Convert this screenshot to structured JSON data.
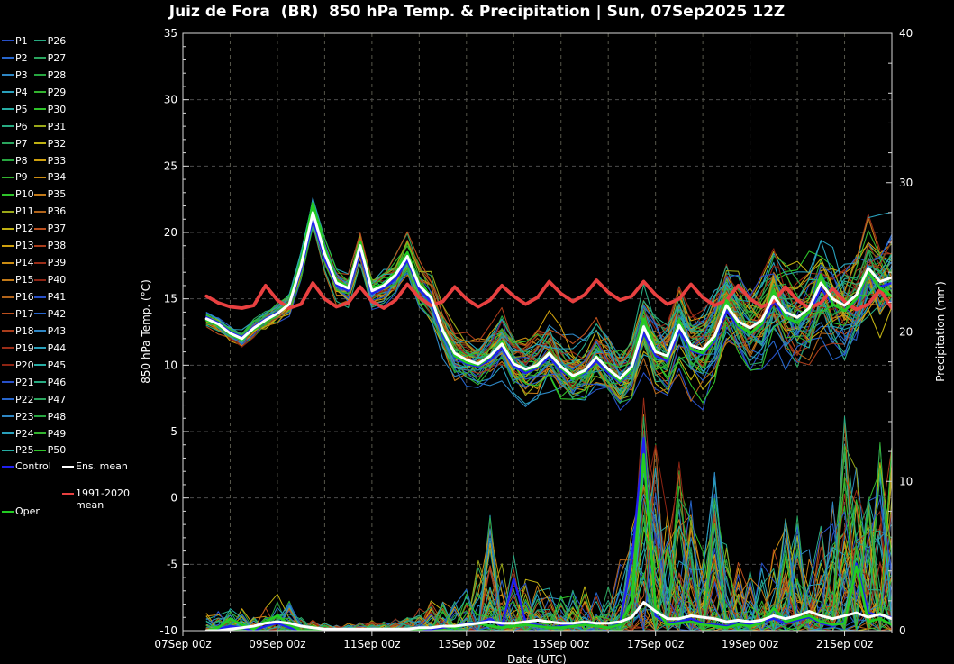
{
  "title": "Juiz de Fora  (BR)  850 hPa Temp. & Precipitation | Sun, 07Sep2025 12Z",
  "legend": {
    "members": [
      "P1",
      "P2",
      "P3",
      "P4",
      "P5",
      "P6",
      "P7",
      "P8",
      "P9",
      "P10",
      "P11",
      "P12",
      "P13",
      "P14",
      "P15",
      "P16",
      "P17",
      "P18",
      "P19",
      "P20",
      "P21",
      "P22",
      "P23",
      "P24",
      "P25",
      "P26",
      "P27",
      "P28",
      "P29",
      "P30",
      "P31",
      "P32",
      "P33",
      "P34",
      "P35",
      "P36",
      "P37",
      "P38",
      "P39",
      "P40",
      "P41",
      "P42",
      "P43",
      "P44",
      "P45",
      "P46",
      "P47",
      "P48",
      "P49",
      "P50"
    ],
    "palette": [
      "#2850c8",
      "#2766cd",
      "#2e86c3",
      "#29a0bb",
      "#26ada4",
      "#28ab82",
      "#2aa55e",
      "#27a640",
      "#33b32f",
      "#2fc32a",
      "#9aa818",
      "#c0b112",
      "#cfa00e",
      "#cb8c12",
      "#c37a18",
      "#b2641a",
      "#bb4f1d",
      "#aa3d1b",
      "#9b2d18",
      "#8d2413"
    ],
    "control": {
      "label": "Control",
      "color": "#2020f0"
    },
    "ens_mean": {
      "label": "Ens. mean",
      "color": "#ffffff"
    },
    "climatology": {
      "label": "1991-2020 mean",
      "line1": "1991-2020",
      "line2": "mean",
      "color": "#e84040"
    },
    "oper": {
      "label": "Oper",
      "color": "#22cc22"
    }
  },
  "chart_data": {
    "type": "line",
    "title": "Juiz de Fora  (BR)  850 hPa Temp. & Precipitation | Sun, 07Sep2025 12Z",
    "x_axis": {
      "label": "Date (UTC)",
      "tick_labels": [
        "07Sep 00z",
        "09Sep 00z",
        "11Sep 00z",
        "13Sep 00z",
        "15Sep 00z",
        "17Sep 00z",
        "19Sep 00z",
        "21Sep 00z"
      ],
      "tick_days": [
        0,
        2,
        4,
        6,
        8,
        10,
        12,
        14
      ],
      "range_days": [
        0,
        15
      ],
      "start": "07Sep2025 00z"
    },
    "y_left": {
      "label": "850 hPa Temp. (°C)",
      "range": [
        -10,
        35
      ],
      "ticks": [
        -10,
        -5,
        0,
        5,
        10,
        15,
        20,
        25,
        30,
        35
      ]
    },
    "y_right": {
      "label": "Precipitation (mm)",
      "range": [
        0,
        40
      ],
      "ticks": [
        0,
        10,
        20,
        30,
        40
      ]
    },
    "grid": true,
    "legend_position": "left",
    "n_members": 50,
    "forecast_start_day": 0.5,
    "time_step_days": 0.25,
    "series": {
      "climatology_temp": [
        15.2,
        14.7,
        14.4,
        14.3,
        14.5,
        16.0,
        14.9,
        14.3,
        14.6,
        16.2,
        15.0,
        14.4,
        14.7,
        15.9,
        14.8,
        14.3,
        14.9,
        16.1,
        15.1,
        14.5,
        14.8,
        15.9,
        15.0,
        14.4,
        14.9,
        16.0,
        15.2,
        14.6,
        15.1,
        16.3,
        15.4,
        14.8,
        15.3,
        16.4,
        15.5,
        14.9,
        15.2,
        16.3,
        15.3,
        14.6,
        15.0,
        16.1,
        15.1,
        14.5,
        14.9,
        16.0,
        15.0,
        14.4,
        14.8,
        15.9,
        14.9,
        14.3,
        14.7,
        15.8,
        14.8,
        14.2,
        14.6,
        15.7,
        14.3
      ],
      "ens_mean_temp": [
        13.5,
        13.1,
        12.4,
        12.0,
        12.8,
        13.4,
        13.9,
        14.6,
        17.5,
        21.5,
        18.4,
        16.2,
        15.8,
        19.0,
        15.6,
        16.0,
        16.8,
        18.2,
        16.0,
        15.1,
        12.6,
        10.9,
        10.4,
        10.1,
        10.7,
        11.6,
        10.1,
        9.7,
        10.0,
        10.9,
        9.9,
        9.2,
        9.6,
        10.6,
        9.7,
        9.0,
        9.9,
        12.9,
        11.0,
        10.7,
        13.0,
        11.5,
        11.2,
        12.2,
        14.5,
        13.3,
        12.8,
        13.4,
        15.2,
        14.0,
        13.6,
        14.3,
        16.2,
        15.0,
        14.5,
        15.3,
        17.3,
        16.3,
        16.6
      ],
      "oper_temp": [
        13.4,
        13.0,
        12.3,
        11.9,
        12.7,
        13.3,
        13.9,
        14.7,
        17.8,
        22.2,
        18.8,
        16.4,
        15.9,
        19.3,
        15.8,
        16.1,
        17.0,
        18.5,
        16.2,
        15.2,
        12.5,
        10.7,
        10.2,
        10.0,
        10.6,
        11.8,
        10.2,
        9.6,
        9.9,
        11.0,
        9.8,
        9.0,
        9.5,
        10.7,
        9.6,
        8.8,
        9.7,
        13.5,
        11.2,
        10.5,
        13.4,
        11.2,
        10.9,
        12.0,
        14.9,
        13.0,
        12.4,
        13.1,
        15.6,
        13.6,
        13.2,
        14.0,
        16.8,
        14.6,
        14.1,
        15.0,
        17.0,
        15.8,
        15.2
      ],
      "control_temp": [
        13.6,
        13.2,
        12.5,
        12.1,
        12.9,
        13.5,
        14.0,
        14.5,
        17.2,
        21.0,
        18.0,
        16.0,
        15.6,
        18.6,
        15.4,
        15.8,
        16.5,
        17.9,
        15.7,
        14.8,
        12.3,
        10.6,
        10.1,
        9.9,
        10.4,
        11.3,
        9.9,
        9.4,
        9.8,
        10.6,
        9.6,
        9.0,
        9.4,
        10.3,
        9.4,
        8.7,
        9.6,
        12.4,
        10.7,
        10.3,
        12.6,
        11.1,
        10.8,
        11.8,
        14.1,
        12.9,
        12.4,
        13.0,
        14.8,
        13.6,
        13.2,
        13.9,
        15.8,
        14.6,
        14.1,
        14.9,
        16.9,
        15.9,
        16.2
      ],
      "member_spread_half_width": [
        0.5,
        0.6,
        0.7,
        0.8,
        0.8,
        0.8,
        0.9,
        1.0,
        1.2,
        1.5,
        1.5,
        1.4,
        1.4,
        1.5,
        1.6,
        1.6,
        1.7,
        1.8,
        1.9,
        2.0,
        2.1,
        2.2,
        2.2,
        2.3,
        2.4,
        2.5,
        2.5,
        2.6,
        2.7,
        2.8,
        2.8,
        2.9,
        3.0,
        3.1,
        3.1,
        3.2,
        3.4,
        3.6,
        3.8,
        3.9,
        4.0,
        4.1,
        4.2,
        4.3,
        4.4,
        4.4,
        4.5,
        4.5,
        4.6,
        4.6,
        4.7,
        4.7,
        4.8,
        4.8,
        4.9,
        4.9,
        5.0,
        5.0,
        5.0
      ],
      "ens_mean_precip": [
        0,
        0,
        0.1,
        0.2,
        0.3,
        0.5,
        0.6,
        0.5,
        0.3,
        0.2,
        0.1,
        0.1,
        0.1,
        0.1,
        0.1,
        0.1,
        0.1,
        0.1,
        0.2,
        0.2,
        0.3,
        0.3,
        0.4,
        0.5,
        0.6,
        0.5,
        0.5,
        0.6,
        0.7,
        0.6,
        0.5,
        0.5,
        0.6,
        0.5,
        0.5,
        0.6,
        0.9,
        1.9,
        1.3,
        0.8,
        0.8,
        1.0,
        0.9,
        0.8,
        0.6,
        0.7,
        0.6,
        0.7,
        1.0,
        0.8,
        1.0,
        1.3,
        1.0,
        0.8,
        1.0,
        1.2,
        0.9,
        1.1,
        0.8
      ],
      "oper_precip": [
        0,
        0.2,
        0.8,
        0.4,
        0.1,
        0.6,
        1.0,
        0.4,
        0,
        0,
        0,
        0,
        0,
        0,
        0,
        0,
        0,
        0,
        0.1,
        0.2,
        0.3,
        0.2,
        0.4,
        0.5,
        0.3,
        0.2,
        0.3,
        0.4,
        0.3,
        0.2,
        0.2,
        0.3,
        0.4,
        0.3,
        0.2,
        0.4,
        2.0,
        11.8,
        1.5,
        0.4,
        0.5,
        0.6,
        0.4,
        0.3,
        0.2,
        0.4,
        0.3,
        0.5,
        1.5,
        0.6,
        0.8,
        1.0,
        0.6,
        0.4,
        0.5,
        4.3,
        0.6,
        0.8,
        0.4
      ],
      "control_precip": [
        0,
        0.1,
        0.3,
        0.2,
        0,
        0.3,
        0.5,
        0.2,
        0,
        0,
        0,
        0,
        0,
        0,
        0,
        0,
        0,
        0,
        0.1,
        0.1,
        0.2,
        0.3,
        0.5,
        0.5,
        0.8,
        0.3,
        3.5,
        0.6,
        0.4,
        0.2,
        0.3,
        0.4,
        0.5,
        0.3,
        0.2,
        0.5,
        4.8,
        12.9,
        1.0,
        0.5,
        0.6,
        0.8,
        0.5,
        0.4,
        0.3,
        0.5,
        0.4,
        0.6,
        0.8,
        0.5,
        0.7,
        0.9,
        0.5,
        0.3,
        0.6,
        4.5,
        1.2,
        1.0,
        0.9
      ],
      "precip_member_envelope": [
        1.2,
        1.5,
        2.0,
        1.5,
        1.0,
        1.8,
        2.5,
        2.0,
        1.0,
        0.8,
        0.6,
        0.5,
        0.5,
        0.6,
        0.8,
        0.6,
        0.8,
        1.0,
        1.5,
        2.0,
        2.5,
        2.0,
        3.0,
        6.5,
        8.0,
        5.0,
        6.0,
        4.0,
        3.5,
        3.0,
        2.5,
        3.0,
        4.0,
        3.0,
        3.5,
        5.0,
        8.0,
        16.0,
        13.0,
        8.0,
        11.5,
        9.0,
        6.0,
        11.3,
        6.0,
        5.0,
        4.0,
        5.0,
        6.0,
        8.0,
        8.5,
        6.0,
        7.0,
        9.0,
        15.0,
        12.0,
        9.0,
        13.0,
        12.5
      ]
    },
    "style": {
      "background": "#000000",
      "grid_v_color": "#56564a",
      "grid_h_color": "#4c4c4c",
      "frame_color": "#d8d8d8",
      "text_color": "#ffffff"
    }
  }
}
